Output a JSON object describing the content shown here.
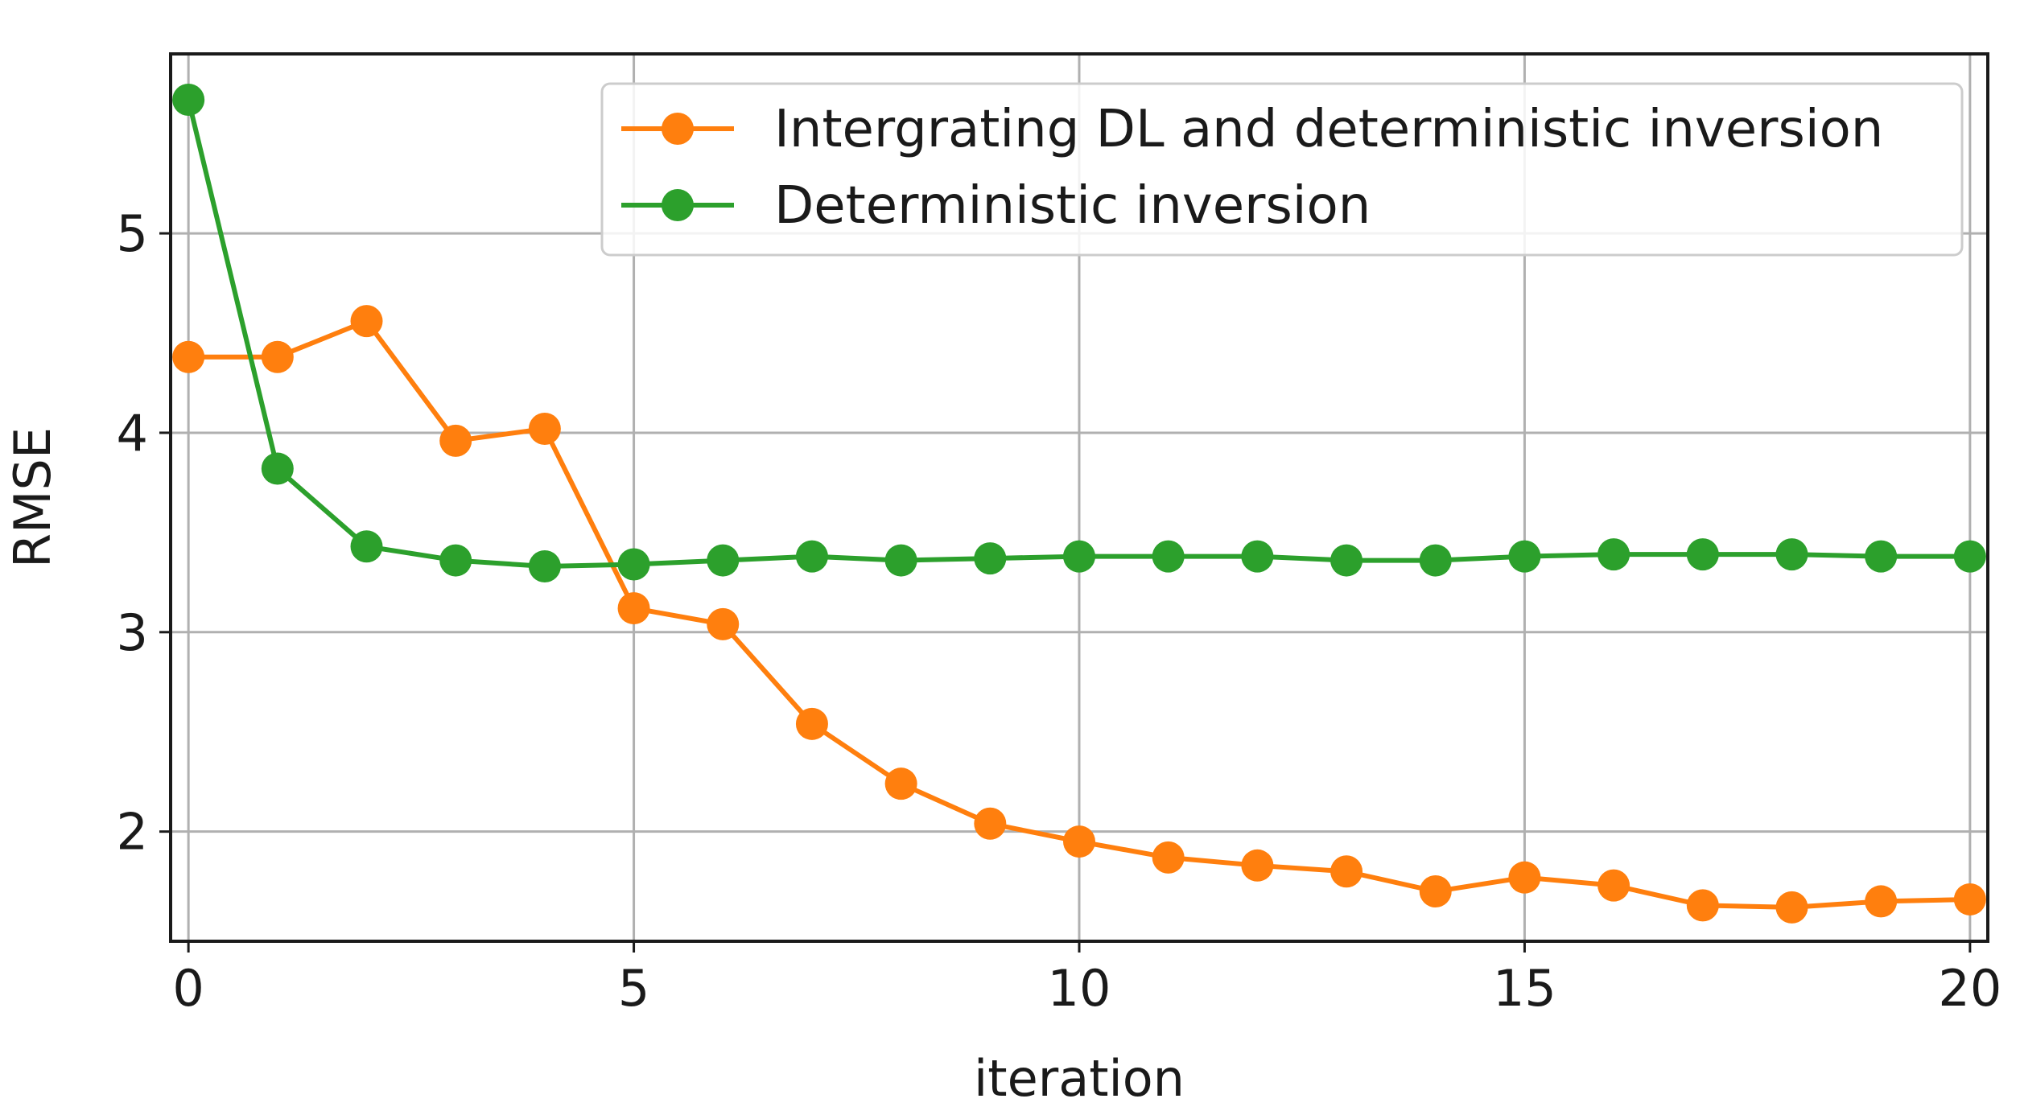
{
  "chart_data": {
    "type": "line",
    "title": "",
    "xlabel": "iteration",
    "ylabel": "RMSE",
    "xlim": [
      -0.2,
      20.2
    ],
    "ylim": [
      1.45,
      5.9
    ],
    "xticks": [
      0,
      5,
      10,
      15,
      20
    ],
    "yticks": [
      2,
      3,
      4,
      5
    ],
    "grid": true,
    "legend_position": "top-right",
    "x": [
      0,
      1,
      2,
      3,
      4,
      5,
      6,
      7,
      8,
      9,
      10,
      11,
      12,
      13,
      14,
      15,
      16,
      17,
      18,
      19,
      20
    ],
    "series": [
      {
        "name": "Intergrating DL and deterministic inversion",
        "color": "#ff7f0e",
        "values": [
          4.38,
          4.38,
          4.56,
          3.96,
          4.02,
          3.12,
          3.04,
          2.54,
          2.24,
          2.04,
          1.95,
          1.87,
          1.83,
          1.8,
          1.7,
          1.77,
          1.73,
          1.63,
          1.62,
          1.65,
          1.66
        ]
      },
      {
        "name": "Deterministic inversion",
        "color": "#2ca02c",
        "values": [
          5.67,
          3.82,
          3.43,
          3.36,
          3.33,
          3.34,
          3.36,
          3.38,
          3.36,
          3.37,
          3.38,
          3.38,
          3.38,
          3.36,
          3.36,
          3.38,
          3.39,
          3.39,
          3.39,
          3.38,
          3.38
        ]
      }
    ]
  }
}
